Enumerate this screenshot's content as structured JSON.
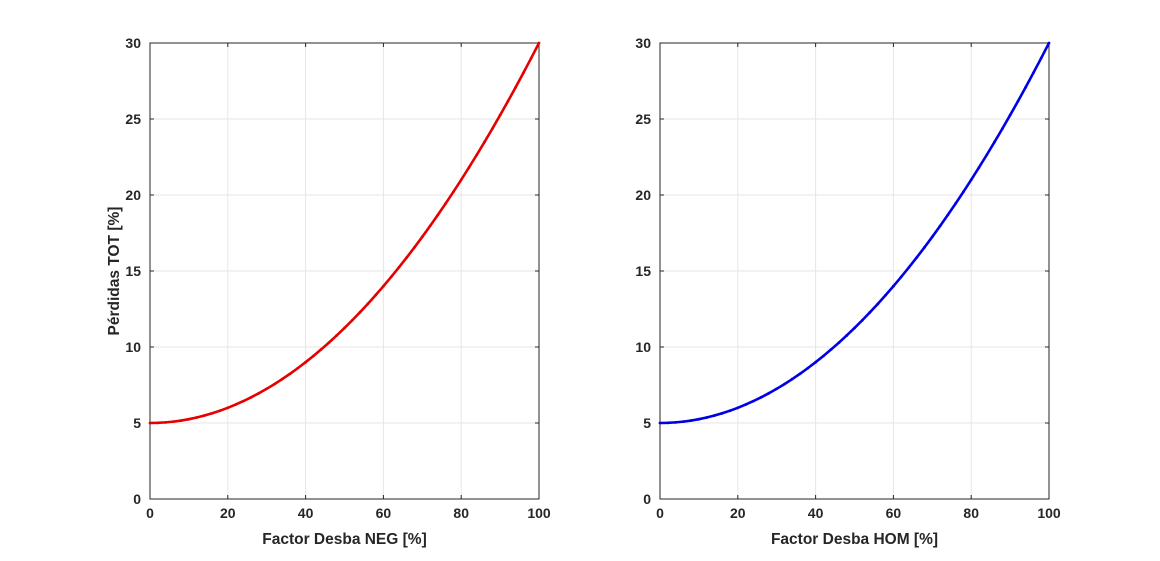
{
  "chart_data": [
    {
      "type": "line",
      "xlabel": "Factor Desba NEG [%]",
      "ylabel": "Pérdidas TOT [%]",
      "xlim": [
        0,
        100
      ],
      "ylim": [
        0,
        30
      ],
      "xticks": [
        "0",
        "20",
        "40",
        "60",
        "80",
        "100"
      ],
      "yticks": [
        "0",
        "5",
        "10",
        "15",
        "20",
        "25",
        "30"
      ],
      "grid": true,
      "color": "#e60000",
      "x": [
        0,
        2,
        4,
        6,
        8,
        10,
        12,
        14,
        16,
        18,
        20,
        22,
        24,
        26,
        28,
        30,
        32,
        34,
        36,
        38,
        40,
        42,
        44,
        46,
        48,
        50,
        52,
        54,
        56,
        58,
        60,
        62,
        64,
        66,
        68,
        70,
        72,
        74,
        76,
        78,
        80,
        82,
        84,
        86,
        88,
        90,
        92,
        94,
        96,
        98,
        100
      ],
      "y": [
        5,
        5.01,
        5.04,
        5.09,
        5.16,
        5.25,
        5.36,
        5.49,
        5.64,
        5.81,
        6,
        6.21,
        6.44,
        6.69,
        6.96,
        7.25,
        7.56,
        7.89,
        8.24,
        8.61,
        9,
        9.41,
        9.84,
        10.29,
        10.76,
        11.25,
        11.76,
        12.29,
        12.84,
        13.41,
        14,
        14.61,
        15.24,
        15.89,
        16.56,
        17.25,
        17.96,
        18.69,
        19.44,
        20.21,
        21,
        21.81,
        22.64,
        23.49,
        24.36,
        25.25,
        26.16,
        27.09,
        28.04,
        29.01,
        30
      ]
    },
    {
      "type": "line",
      "xlabel": "Factor Desba HOM [%]",
      "ylabel": "",
      "xlim": [
        0,
        100
      ],
      "ylim": [
        0,
        30
      ],
      "xticks": [
        "0",
        "20",
        "40",
        "60",
        "80",
        "100"
      ],
      "yticks": [
        "0",
        "5",
        "10",
        "15",
        "20",
        "25",
        "30"
      ],
      "grid": true,
      "color": "#0000e6",
      "x": [
        0,
        2,
        4,
        6,
        8,
        10,
        12,
        14,
        16,
        18,
        20,
        22,
        24,
        26,
        28,
        30,
        32,
        34,
        36,
        38,
        40,
        42,
        44,
        46,
        48,
        50,
        52,
        54,
        56,
        58,
        60,
        62,
        64,
        66,
        68,
        70,
        72,
        74,
        76,
        78,
        80,
        82,
        84,
        86,
        88,
        90,
        92,
        94,
        96,
        98,
        100
      ],
      "y": [
        5,
        5.01,
        5.04,
        5.09,
        5.16,
        5.25,
        5.36,
        5.49,
        5.64,
        5.81,
        6,
        6.21,
        6.44,
        6.69,
        6.96,
        7.25,
        7.56,
        7.89,
        8.24,
        8.61,
        9,
        9.41,
        9.84,
        10.29,
        10.76,
        11.25,
        11.76,
        12.29,
        12.84,
        13.41,
        14,
        14.61,
        15.24,
        15.89,
        16.56,
        17.25,
        17.96,
        18.69,
        19.44,
        20.21,
        21,
        21.81,
        22.64,
        23.49,
        24.36,
        25.25,
        26.16,
        27.09,
        28.04,
        29.01,
        30
      ]
    }
  ]
}
